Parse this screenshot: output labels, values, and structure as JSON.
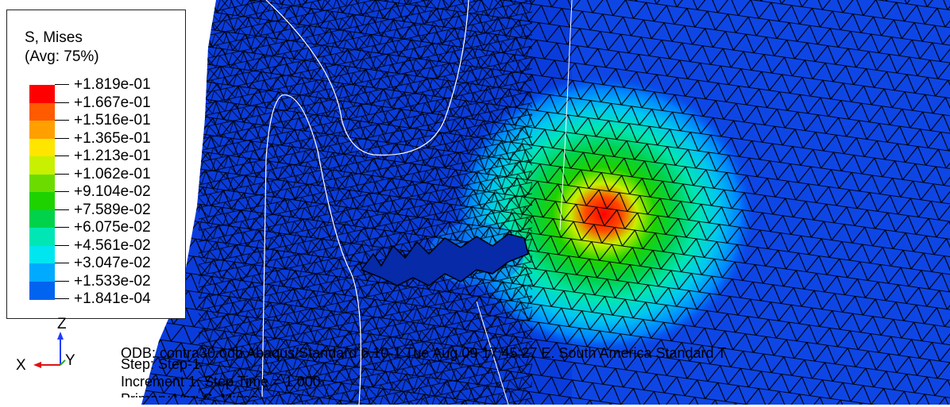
{
  "legend": {
    "title": "S, Mises",
    "subtitle": "(Avg: 75%)",
    "entries": [
      {
        "value": "+1.819e-01",
        "color": "#ff0000"
      },
      {
        "value": "+1.667e-01",
        "color": "#ff5a00"
      },
      {
        "value": "+1.516e-01",
        "color": "#ffa000"
      },
      {
        "value": "+1.365e-01",
        "color": "#ffe600"
      },
      {
        "value": "+1.213e-01",
        "color": "#c8f000"
      },
      {
        "value": "+1.062e-01",
        "color": "#6cdc00"
      },
      {
        "value": "+9.104e-02",
        "color": "#1ed200"
      },
      {
        "value": "+7.589e-02",
        "color": "#00d24c"
      },
      {
        "value": "+6.075e-02",
        "color": "#00e6b4"
      },
      {
        "value": "+4.561e-02",
        "color": "#00e6f0"
      },
      {
        "value": "+3.047e-02",
        "color": "#00aaff"
      },
      {
        "value": "+1.533e-02",
        "color": "#0064f0"
      },
      {
        "value": "+1.841e-04",
        "color": "#0028e6"
      }
    ]
  },
  "triad": {
    "x_label": "X",
    "y_label": "Y",
    "z_label": "Z"
  },
  "info": {
    "odb_line": "ODB: contra30.odb    Abaqus/Standard 6.10-1    Tue Aug 09 17:45:27 E. South America Standard T",
    "step_line": "Step: Step-1",
    "increment_line": "Increment      1: Step Time =    1.000",
    "primary_line": "Primary Var: S, Mises"
  },
  "colors": {
    "background": "#ffffff",
    "mesh_base": "#0a3cdc",
    "edge": "#000000"
  }
}
